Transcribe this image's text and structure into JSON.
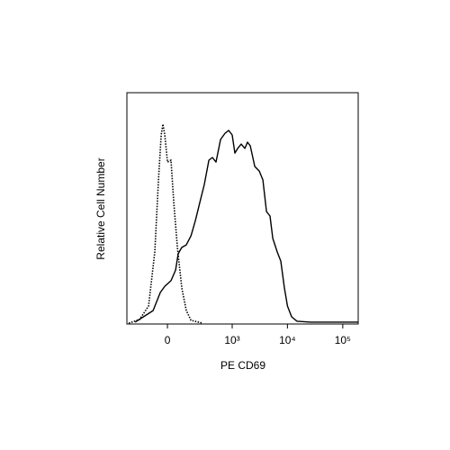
{
  "chart_data": {
    "type": "line",
    "xlabel": "PE CD69",
    "ylabel": "Relative Cell Number",
    "xscale": "biexponential",
    "xlim": [
      -355,
      190000
    ],
    "ylim": [
      0,
      100
    ],
    "xticks": [
      0,
      {
        "value": 1000,
        "label": "10³"
      },
      {
        "value": 10000,
        "label": "10⁴"
      },
      {
        "value": 100000,
        "label": "10⁵"
      }
    ],
    "series": [
      {
        "color": "#000000",
        "style": "solid",
        "x": [
          -243,
          -86,
          -41,
          -15,
          20,
          47,
          63,
          86,
          118,
          155,
          196,
          243,
          300,
          369,
          431,
          504,
          612,
          741,
          862,
          1000,
          1120,
          1260,
          1460,
          1700,
          1900,
          2130,
          2570,
          3100,
          3600,
          4180,
          4850,
          5430,
          6550,
          7600,
          8830,
          10000,
          11900,
          14900,
          26100,
          190000
        ],
        "values": [
          0.8,
          5.8,
          13.6,
          16.3,
          18.7,
          23.3,
          30.4,
          33.1,
          34.2,
          38.1,
          44.7,
          52.5,
          60.3,
          70.8,
          72.0,
          70.0,
          79.8,
          82.5,
          83.7,
          81.7,
          73.9,
          75.9,
          77.8,
          75.9,
          78.6,
          77.0,
          68.1,
          66.1,
          62.3,
          48.6,
          46.7,
          37.0,
          31.1,
          27.2,
          15.6,
          7.8,
          3.1,
          1.2,
          0.8,
          0.8
        ]
      },
      {
        "color": "#000000",
        "style": "dotted",
        "x": [
          -326,
          -196,
          -118,
          -75,
          -52,
          -36,
          -26,
          -15,
          0,
          20,
          36,
          58,
          86,
          118,
          155,
          276
        ],
        "values": [
          0.4,
          1.9,
          7.8,
          31.1,
          62.3,
          81.7,
          86.4,
          81.7,
          70.0,
          70.8,
          52.5,
          33.1,
          15.6,
          5.8,
          1.6,
          0.4
        ]
      }
    ]
  }
}
